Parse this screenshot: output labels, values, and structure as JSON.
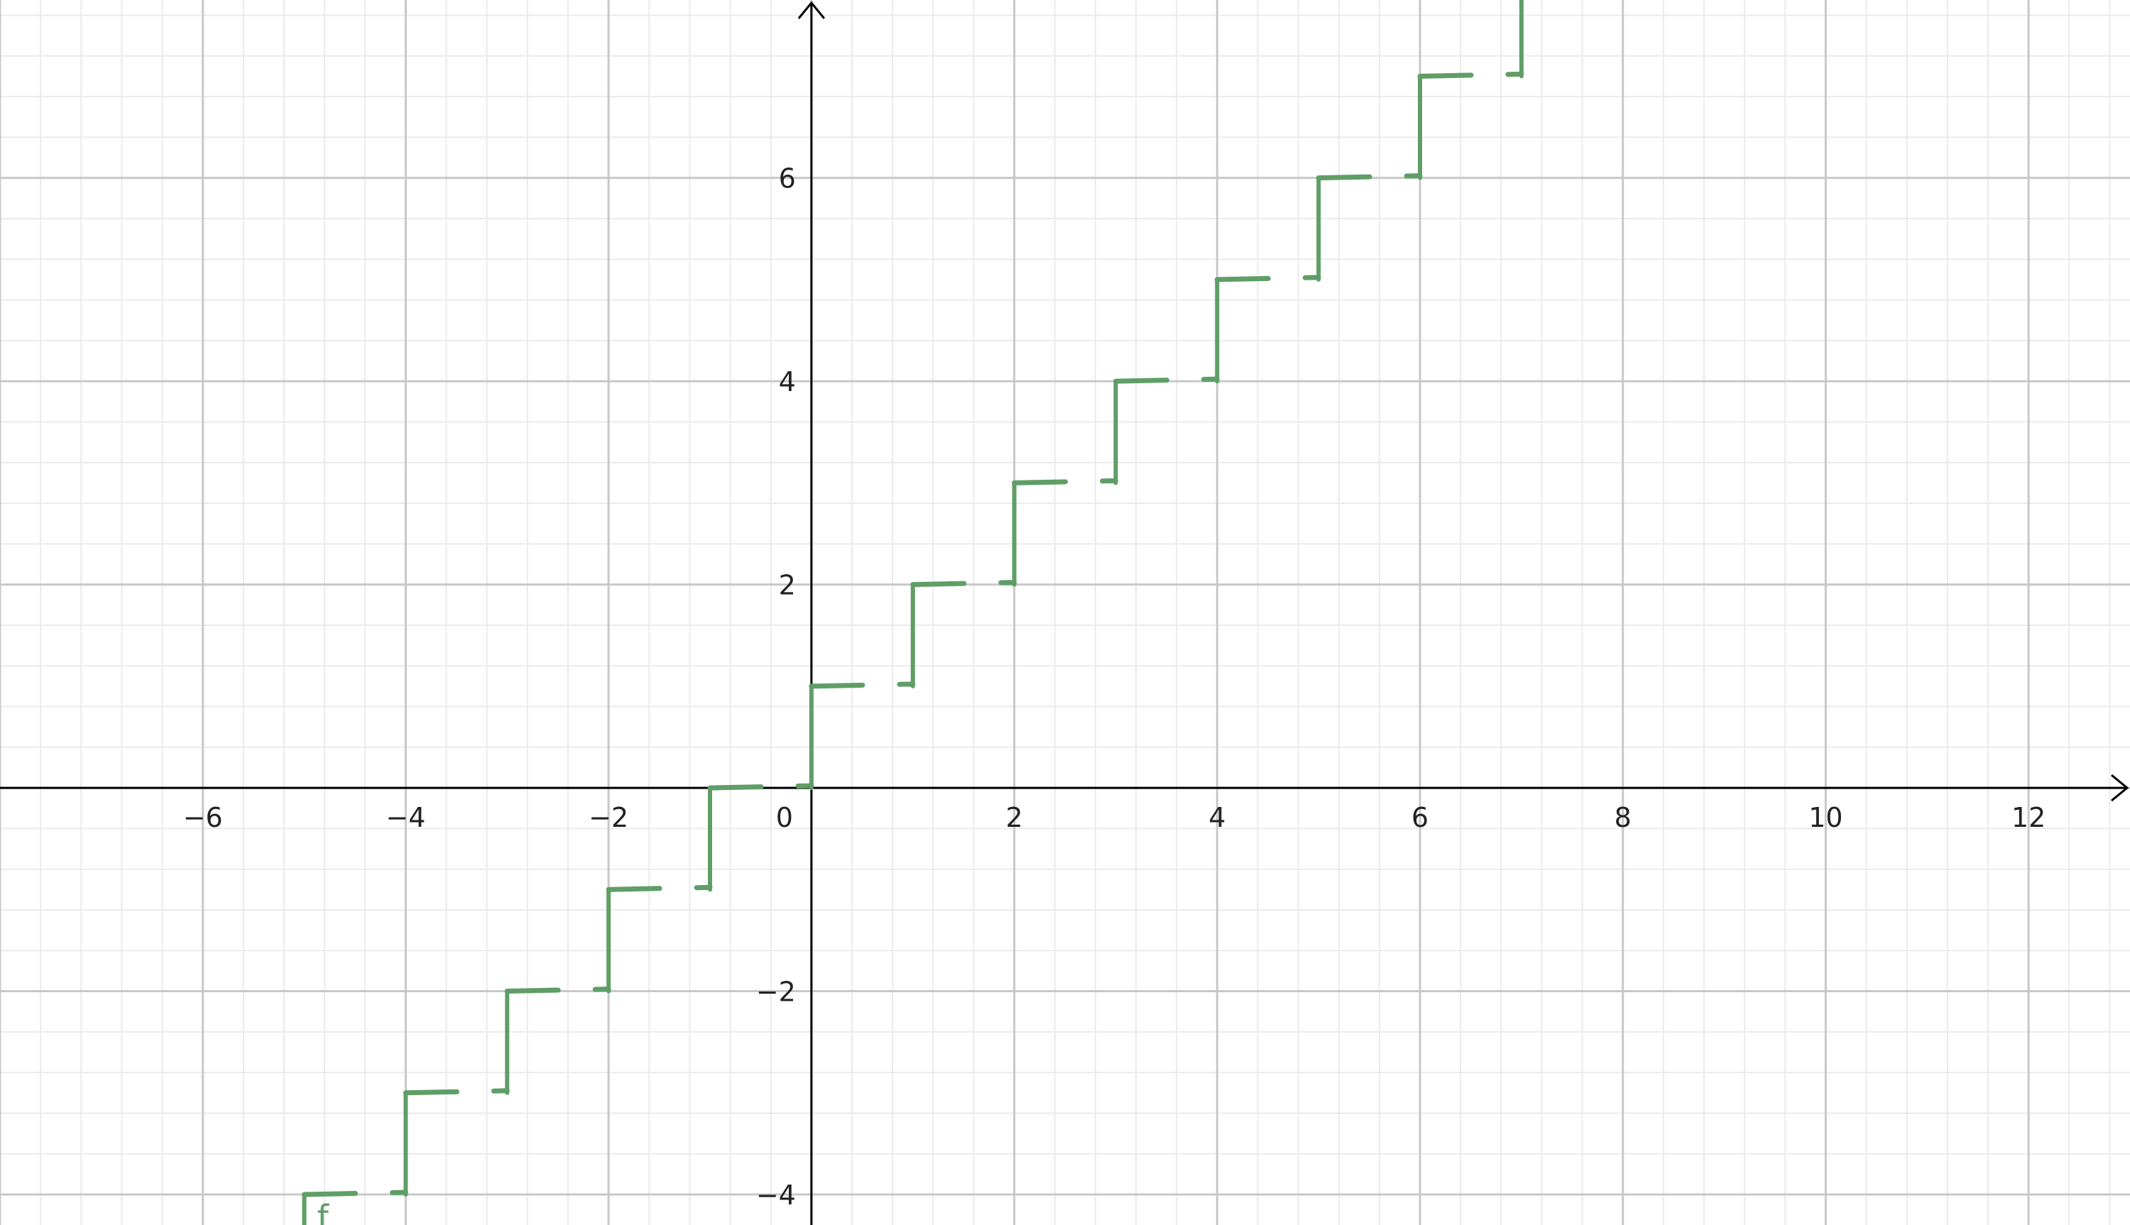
{
  "chart_data": {
    "type": "line",
    "title": "",
    "xlabel": "",
    "ylabel": "",
    "xlim": [
      -8,
      13
    ],
    "ylim": [
      -4.3,
      7.75
    ],
    "grid": true,
    "minor_step": 0.4,
    "major_step": 2,
    "x_ticks": [
      -6,
      -4,
      -2,
      0,
      2,
      4,
      6,
      8,
      10,
      12
    ],
    "y_ticks": [
      -4,
      -2,
      2,
      4,
      6
    ],
    "x_tick_labels": [
      "−6",
      "−4",
      "−2",
      "0",
      "2",
      "4",
      "6",
      "8",
      "10",
      "12"
    ],
    "y_tick_labels": [
      "−4",
      "−2",
      "2",
      "4",
      "6"
    ],
    "origin_label": "0",
    "series": [
      {
        "name": "f",
        "color": "#5f9e67",
        "style": "dashed-steps",
        "steps": [
          {
            "x_start": -5,
            "x_end": -4,
            "y": -4
          },
          {
            "x_start": -4,
            "x_end": -3,
            "y": -3
          },
          {
            "x_start": -3,
            "x_end": -2,
            "y": -2
          },
          {
            "x_start": -2,
            "x_end": -1,
            "y": -1
          },
          {
            "x_start": -1,
            "x_end": 0,
            "y": 0
          },
          {
            "x_start": 0,
            "x_end": 1,
            "y": 1
          },
          {
            "x_start": 1,
            "x_end": 2,
            "y": 2
          },
          {
            "x_start": 2,
            "x_end": 3,
            "y": 3
          },
          {
            "x_start": 3,
            "x_end": 4,
            "y": 4
          },
          {
            "x_start": 4,
            "x_end": 5,
            "y": 5
          },
          {
            "x_start": 5,
            "x_end": 6,
            "y": 6
          },
          {
            "x_start": 6,
            "x_end": 7,
            "y": 7
          }
        ],
        "jumps": [
          {
            "x": -5,
            "y_from": -4.3,
            "y_to": -4
          },
          {
            "x": -4,
            "y_from": -4,
            "y_to": -3
          },
          {
            "x": -3,
            "y_from": -3,
            "y_to": -2
          },
          {
            "x": -2,
            "y_from": -2,
            "y_to": -1
          },
          {
            "x": -1,
            "y_from": -1,
            "y_to": 0
          },
          {
            "x": 0,
            "y_from": 0,
            "y_to": 1
          },
          {
            "x": 1,
            "y_from": 1,
            "y_to": 2
          },
          {
            "x": 2,
            "y_from": 2,
            "y_to": 3
          },
          {
            "x": 3,
            "y_from": 3,
            "y_to": 4
          },
          {
            "x": 4,
            "y_from": 4,
            "y_to": 5
          },
          {
            "x": 5,
            "y_from": 5,
            "y_to": 6
          },
          {
            "x": 6,
            "y_from": 6,
            "y_to": 7
          },
          {
            "x": 7,
            "y_from": 7,
            "y_to": 7.75
          }
        ]
      }
    ]
  }
}
